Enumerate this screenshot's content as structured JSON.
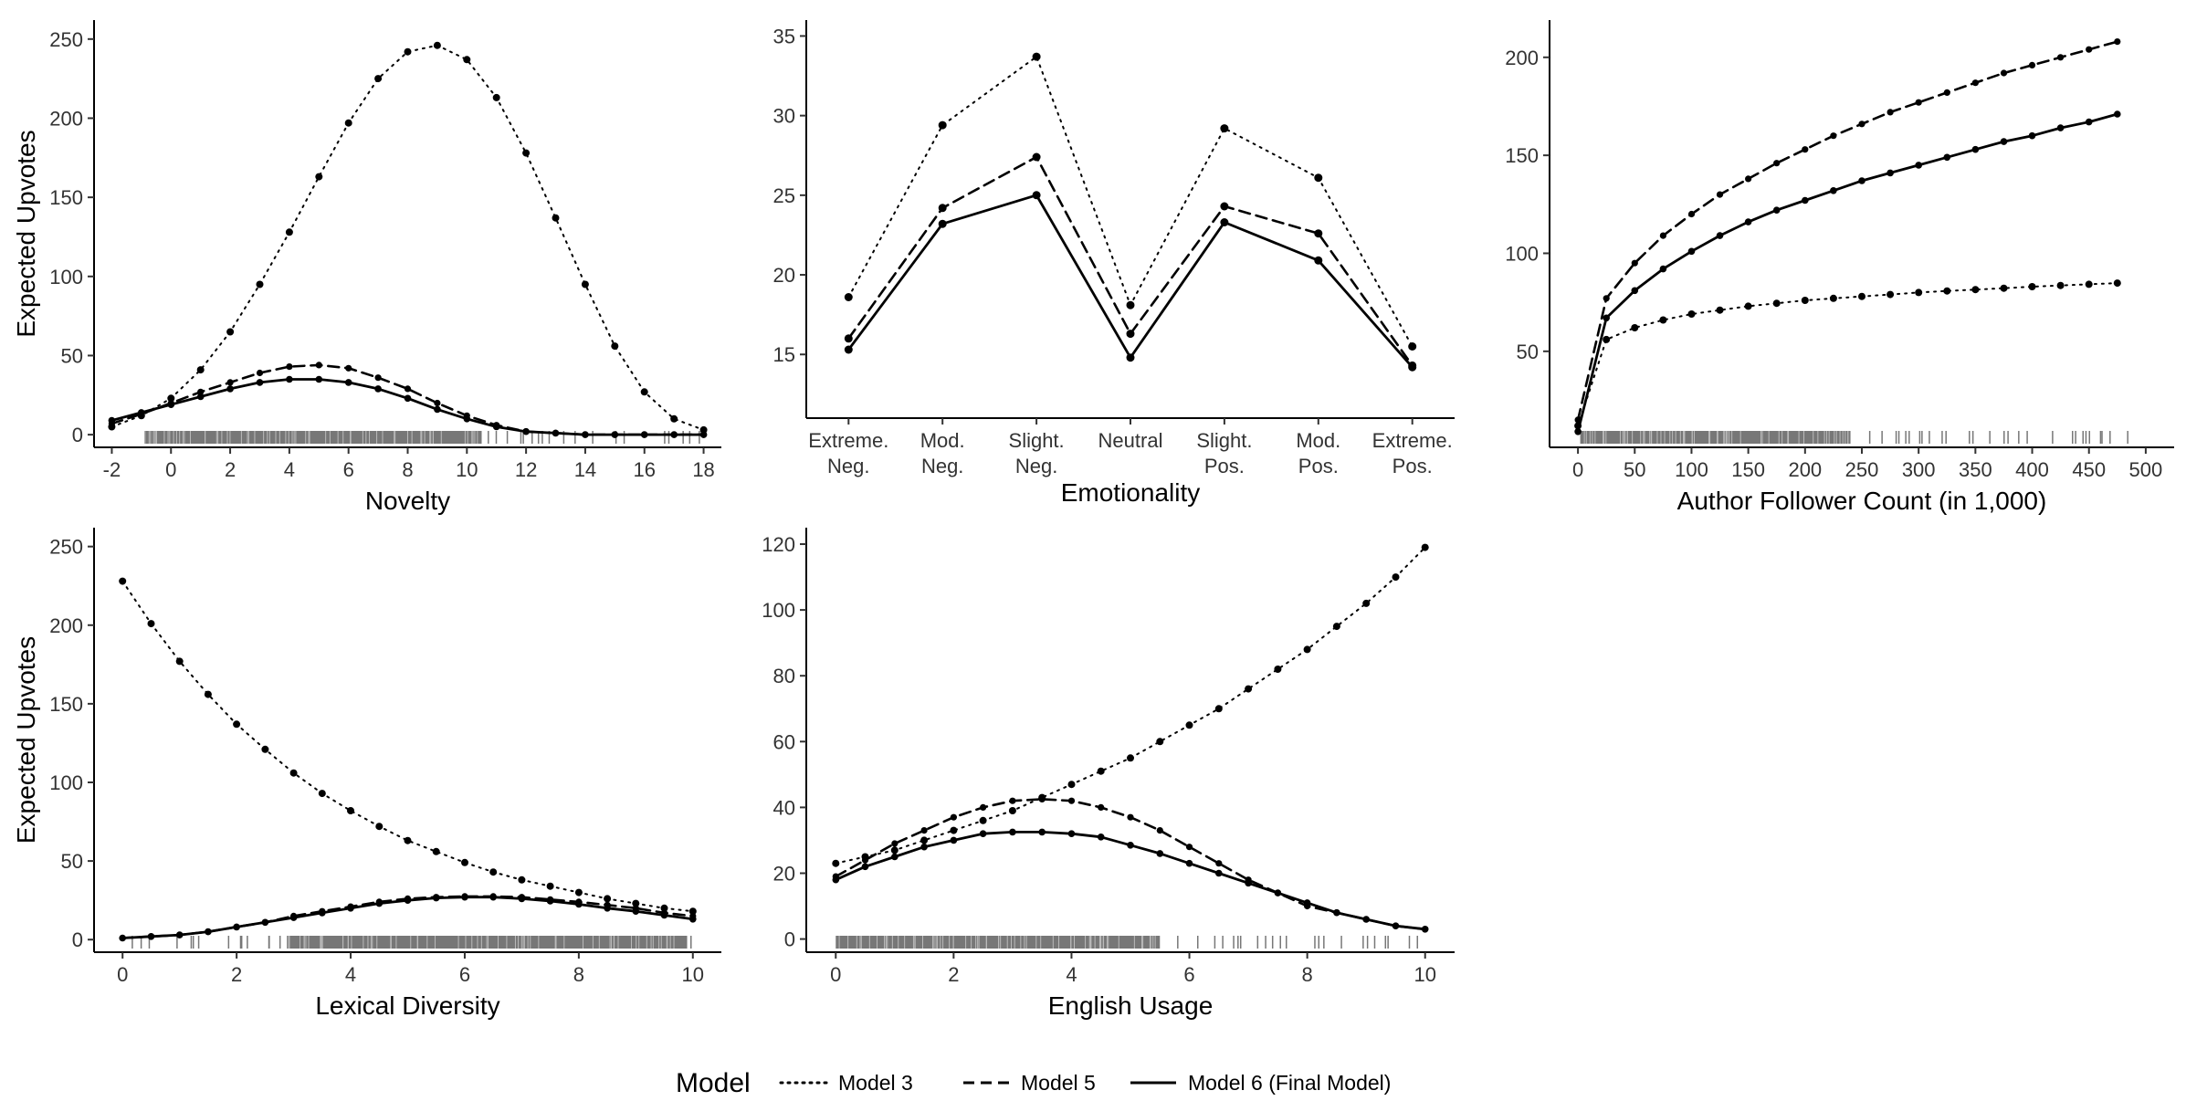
{
  "chart_data": [
    {
      "type": "line",
      "xlabel": "Novelty",
      "ylabel": "Expected Upvotes",
      "xlim": [
        -2.6,
        18.6
      ],
      "ylim": [
        -8,
        262
      ],
      "xticks": [
        -2,
        0,
        2,
        4,
        6,
        8,
        10,
        12,
        14,
        16,
        18
      ],
      "xtick_labels": [
        "-2",
        "0",
        "2",
        "4",
        "6",
        "8",
        "10",
        "12",
        "14",
        "16",
        "18"
      ],
      "yticks": [
        0,
        50,
        100,
        150,
        200,
        250
      ],
      "ytick_labels": [
        "0",
        "50",
        "100",
        "150",
        "200",
        "250"
      ],
      "x": [
        -2,
        -1,
        0,
        1,
        2,
        3,
        4,
        5,
        6,
        7,
        8,
        9,
        10,
        11,
        12,
        13,
        14,
        15,
        16,
        17,
        18
      ],
      "series": [
        {
          "name": "Model 3",
          "style": "dotted",
          "values": [
            5,
            12,
            23,
            41,
            65,
            95,
            128,
            163,
            197,
            225,
            242,
            246,
            237,
            213,
            178,
            137,
            95,
            56,
            27,
            10,
            3
          ]
        },
        {
          "name": "Model 5",
          "style": "dashed",
          "values": [
            7,
            13,
            20,
            27,
            33,
            39,
            43,
            44,
            42,
            36,
            29,
            20,
            12,
            6,
            2,
            1,
            0,
            0,
            0,
            0,
            0
          ]
        },
        {
          "name": "Model 6 (Final Model)",
          "style": "solid",
          "values": [
            9,
            14,
            19,
            24,
            29,
            33,
            35,
            35,
            33,
            29,
            23,
            16,
            10,
            5,
            2,
            1,
            0,
            0,
            0,
            0,
            0
          ]
        }
      ],
      "rug": {
        "start": -1,
        "end": 18,
        "dense_start": -0.9,
        "dense_end": 10.5
      }
    },
    {
      "type": "line",
      "xlabel": "Emotionality",
      "ylabel": "",
      "ylim": [
        11,
        36
      ],
      "categories": [
        "Extreme.\nNeg.",
        "Mod.\nNeg.",
        "Slight.\nNeg.",
        "Neutral",
        "Slight.\nPos.",
        "Mod.\nPos.",
        "Extreme.\nPos."
      ],
      "yticks": [
        15,
        20,
        25,
        30,
        35
      ],
      "ytick_labels": [
        "15",
        "20",
        "25",
        "30",
        "35"
      ],
      "series": [
        {
          "name": "Model 3",
          "style": "dotted",
          "values": [
            18.6,
            29.4,
            33.7,
            18.1,
            29.2,
            26.1,
            15.5
          ]
        },
        {
          "name": "Model 5",
          "style": "dashed",
          "values": [
            16.0,
            24.2,
            27.4,
            16.3,
            24.3,
            22.6,
            14.3
          ]
        },
        {
          "name": "Model 6 (Final Model)",
          "style": "solid",
          "values": [
            15.3,
            23.2,
            25.0,
            14.8,
            23.3,
            20.9,
            14.2
          ]
        }
      ]
    },
    {
      "type": "line",
      "xlabel": "Author Follower Count (in 1,000)",
      "ylabel": "",
      "xlim": [
        -25,
        525
      ],
      "ylim": [
        1,
        219
      ],
      "xticks": [
        0,
        50,
        100,
        150,
        200,
        250,
        300,
        350,
        400,
        450,
        500
      ],
      "xtick_labels": [
        "0",
        "50",
        "100",
        "150",
        "200",
        "250",
        "300",
        "350",
        "400",
        "450",
        "500"
      ],
      "yticks": [
        50,
        100,
        150,
        200
      ],
      "ytick_labels": [
        "50",
        "100",
        "150",
        "200"
      ],
      "x": [
        0,
        25,
        50,
        75,
        100,
        125,
        150,
        175,
        200,
        225,
        250,
        275,
        300,
        325,
        350,
        375,
        400,
        425,
        450,
        475
      ],
      "series": [
        {
          "name": "Model 3",
          "style": "dotted",
          "values": [
            12,
            56,
            62,
            66,
            69,
            71,
            73,
            74.5,
            76,
            77,
            78,
            79,
            80,
            80.8,
            81.5,
            82.2,
            83,
            83.6,
            84.2,
            84.8
          ]
        },
        {
          "name": "Model 5",
          "style": "dashed",
          "values": [
            15,
            77,
            95,
            109,
            120,
            130,
            138,
            146,
            153,
            160,
            166,
            172,
            177,
            182,
            187,
            192,
            196,
            200,
            204,
            208
          ]
        },
        {
          "name": "Model 6 (Final Model)",
          "style": "solid",
          "values": [
            9,
            67,
            81,
            92,
            101,
            109,
            116,
            122,
            127,
            132,
            137,
            141,
            145,
            149,
            153,
            157,
            160,
            164,
            167,
            171
          ]
        }
      ],
      "rug": {
        "start": 0,
        "end": 485,
        "dense_start": 2,
        "dense_end": 240
      }
    },
    {
      "type": "line",
      "xlabel": "Lexical Diversity",
      "ylabel": "Expected Upvotes",
      "xlim": [
        -0.5,
        10.5
      ],
      "ylim": [
        -8,
        262
      ],
      "xticks": [
        0,
        2,
        4,
        6,
        8,
        10
      ],
      "xtick_labels": [
        "0",
        "2",
        "4",
        "6",
        "8",
        "10"
      ],
      "yticks": [
        0,
        50,
        100,
        150,
        200,
        250
      ],
      "ytick_labels": [
        "0",
        "50",
        "100",
        "150",
        "200",
        "250"
      ],
      "x": [
        0,
        0.5,
        1,
        1.5,
        2,
        2.5,
        3,
        3.5,
        4,
        4.5,
        5,
        5.5,
        6,
        6.5,
        7,
        7.5,
        8,
        8.5,
        9,
        9.5,
        10
      ],
      "series": [
        {
          "name": "Model 3",
          "style": "dotted",
          "values": [
            228,
            201,
            177,
            156,
            137,
            121,
            106,
            93,
            82,
            72,
            63,
            56,
            49,
            43,
            38,
            34,
            30,
            26,
            23,
            20,
            18
          ]
        },
        {
          "name": "Model 5",
          "style": "dashed",
          "values": [
            1,
            2,
            3,
            5,
            8,
            11,
            15,
            18,
            21,
            24,
            26,
            27,
            27.5,
            27.5,
            27,
            25.5,
            24,
            22,
            20,
            17,
            15
          ]
        },
        {
          "name": "Model 6 (Final Model)",
          "style": "solid",
          "values": [
            1,
            2,
            3,
            5,
            8,
            11,
            14,
            17,
            20,
            23,
            25,
            26.5,
            27,
            27,
            26,
            24.5,
            22.5,
            20,
            18,
            15.5,
            13
          ]
        }
      ],
      "rug": {
        "start": 0,
        "end": 10,
        "dense_start": 2.9,
        "dense_end": 9.9
      }
    },
    {
      "type": "line",
      "xlabel": "English Usage",
      "ylabel": "",
      "xlim": [
        -0.5,
        10.5
      ],
      "ylim": [
        -4,
        125
      ],
      "xticks": [
        0,
        2,
        4,
        6,
        8,
        10
      ],
      "xtick_labels": [
        "0",
        "2",
        "4",
        "6",
        "8",
        "10"
      ],
      "yticks": [
        0,
        20,
        40,
        60,
        80,
        100,
        120
      ],
      "ytick_labels": [
        "0",
        "20",
        "40",
        "60",
        "80",
        "100",
        "120"
      ],
      "x": [
        0,
        0.5,
        1,
        1.5,
        2,
        2.5,
        3,
        3.5,
        4,
        4.5,
        5,
        5.5,
        6,
        6.5,
        7,
        7.5,
        8,
        8.5,
        9,
        9.5,
        10
      ],
      "series": [
        {
          "name": "Model 3",
          "style": "dotted",
          "values": [
            23,
            25,
            27,
            30,
            33,
            36,
            39,
            43,
            47,
            51,
            55,
            60,
            65,
            70,
            76,
            82,
            88,
            95,
            102,
            110,
            119
          ]
        },
        {
          "name": "Model 5",
          "style": "dashed",
          "values": [
            19,
            24,
            29,
            33,
            37,
            40,
            42,
            42.5,
            42,
            40,
            37,
            33,
            28,
            23,
            18,
            14,
            10,
            8,
            6,
            4,
            3
          ]
        },
        {
          "name": "Model 6 (Final Model)",
          "style": "solid",
          "values": [
            18,
            22,
            25,
            28,
            30,
            32,
            32.5,
            32.5,
            32,
            31,
            28.5,
            26,
            23,
            20,
            17,
            14,
            11,
            8,
            6,
            4,
            3
          ]
        }
      ],
      "rug": {
        "start": 0,
        "end": 10,
        "dense_start": 0,
        "dense_end": 5.5
      }
    }
  ],
  "legend": {
    "title": "Model",
    "placement": "bottom",
    "entries": [
      {
        "label": "Model 3",
        "style": "dotted"
      },
      {
        "label": "Model 5",
        "style": "dashed"
      },
      {
        "label": "Model 6 (Final Model)",
        "style": "solid"
      }
    ]
  }
}
